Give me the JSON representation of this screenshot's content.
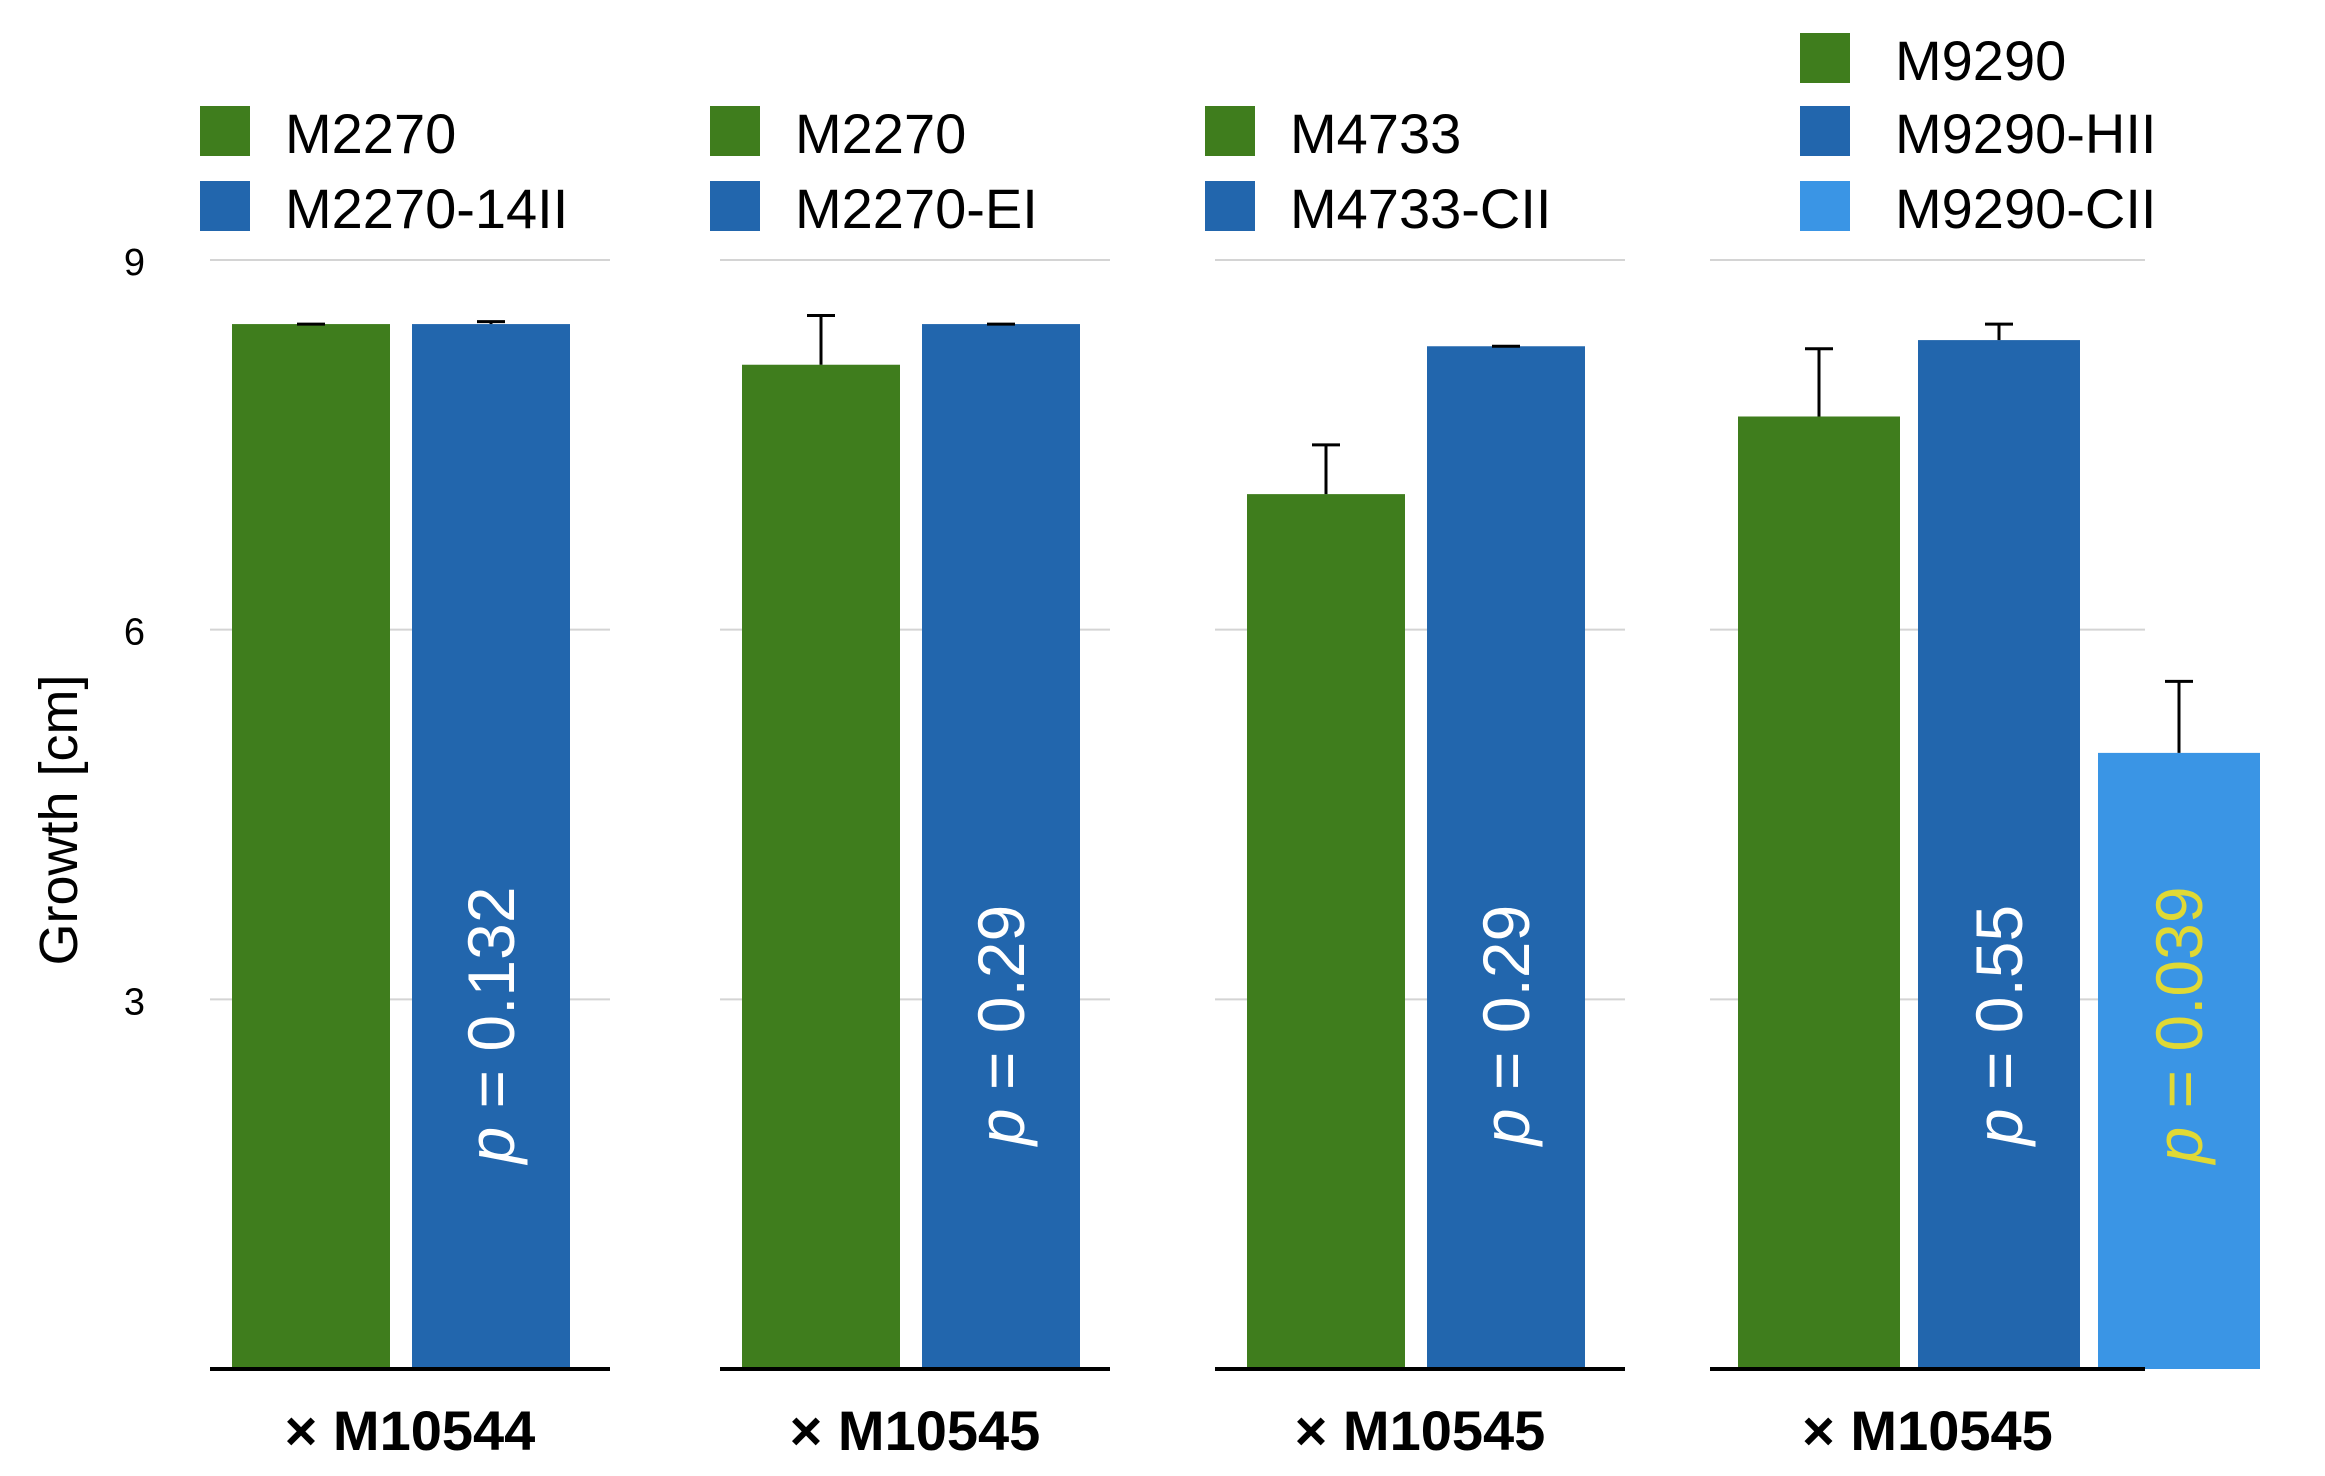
{
  "chart_data": {
    "type": "bar",
    "ylabel": "Growth [cm]",
    "ylim": [
      0,
      9
    ],
    "yticks": [
      3,
      6,
      9
    ],
    "grid": true,
    "legend_position": "top of each panel",
    "colors": {
      "green": "#3f7d1d",
      "blue": "#2266ad",
      "light_blue": "#3a95e5",
      "p_text": "#ffffff",
      "p_text_highlight": "#e0d935",
      "grid": "#d4d4d4",
      "axis": "#000000",
      "error_bar": "#000000"
    },
    "panels": [
      {
        "xlabel": "× M10544",
        "series": [
          {
            "name": "M2270",
            "value": 8.48,
            "error": 0.0,
            "color": "#3f7d1d",
            "p_label": null
          },
          {
            "name": "M2270-14II",
            "value": 8.48,
            "error": 0.02,
            "color": "#2266ad",
            "p_label": {
              "prefix": "p",
              "text": " = 0.132",
              "highlight": false
            }
          }
        ]
      },
      {
        "xlabel": "× M10545",
        "series": [
          {
            "name": "M2270",
            "value": 8.15,
            "error": 0.4,
            "color": "#3f7d1d",
            "p_label": null
          },
          {
            "name": "M2270-EI",
            "value": 8.48,
            "error": 0.0,
            "color": "#2266ad",
            "p_label": {
              "prefix": "p",
              "text": " = 0.29",
              "highlight": false
            }
          }
        ]
      },
      {
        "xlabel": "× M10545",
        "series": [
          {
            "name": "M4733",
            "value": 7.1,
            "error": 0.4,
            "color": "#3f7d1d",
            "p_label": null
          },
          {
            "name": "M4733-CII",
            "value": 8.3,
            "error": 0.0,
            "color": "#2266ad",
            "p_label": {
              "prefix": "p",
              "text": " = 0.29",
              "highlight": false
            }
          }
        ]
      },
      {
        "xlabel": "× M10545",
        "series": [
          {
            "name": "M9290",
            "value": 7.73,
            "error": 0.55,
            "color": "#3f7d1d",
            "p_label": null
          },
          {
            "name": "M9290-HII",
            "value": 8.35,
            "error": 0.13,
            "color": "#2266ad",
            "p_label": {
              "prefix": "p",
              "text": " = 0.55",
              "highlight": false
            }
          },
          {
            "name": "M9290-CII",
            "value": 5.0,
            "error": 0.58,
            "color": "#3a95e5",
            "p_label": {
              "prefix": "p",
              "text": " = 0.039",
              "highlight": true
            }
          }
        ]
      }
    ]
  }
}
